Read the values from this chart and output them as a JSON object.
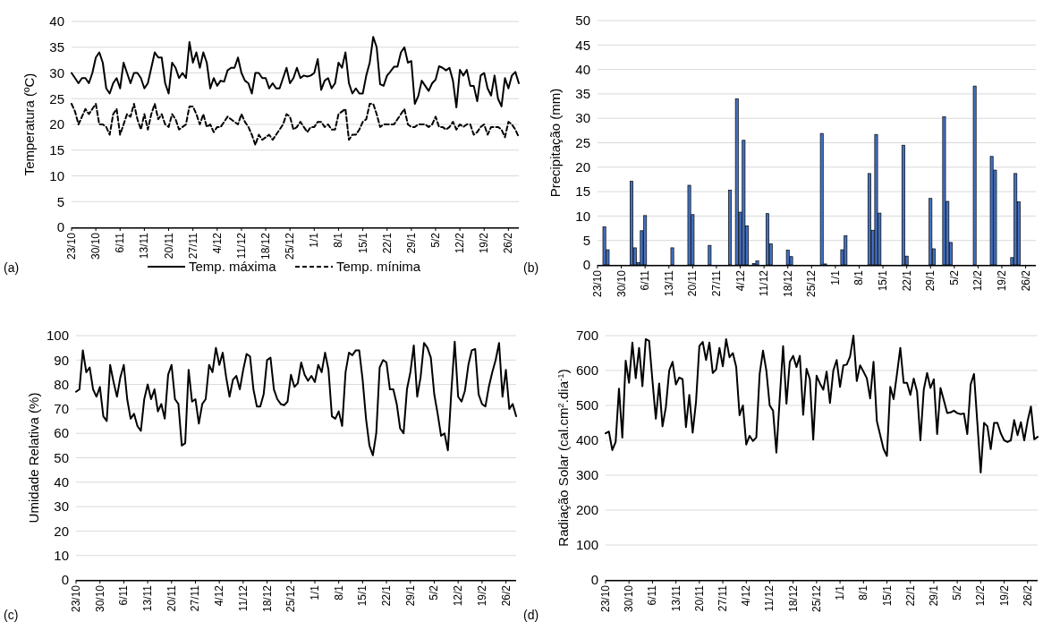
{
  "chart_data": [
    {
      "type": "line",
      "ylabel": "Temperatura (ºC)",
      "annotations": [
        "(a)"
      ],
      "grid": "y",
      "legend": "bottom",
      "ylim": [
        0,
        40
      ],
      "yticks": [
        0,
        5,
        10,
        15,
        20,
        25,
        30,
        35,
        40
      ],
      "categories": [
        "23/10",
        null,
        null,
        null,
        null,
        null,
        null,
        "30/10",
        null,
        null,
        null,
        null,
        null,
        null,
        "6/11",
        null,
        null,
        null,
        null,
        null,
        null,
        "13/11",
        null,
        null,
        null,
        null,
        null,
        null,
        "20/11",
        null,
        null,
        null,
        null,
        null,
        null,
        "27/11",
        null,
        null,
        null,
        null,
        null,
        null,
        "4/12",
        null,
        null,
        null,
        null,
        null,
        null,
        "11/12",
        null,
        null,
        null,
        null,
        null,
        null,
        "18/12",
        null,
        null,
        null,
        null,
        null,
        null,
        "25/12",
        null,
        null,
        null,
        null,
        null,
        null,
        "1/1",
        null,
        null,
        null,
        null,
        null,
        null,
        "8/1",
        null,
        null,
        null,
        null,
        null,
        null,
        "15/1",
        null,
        null,
        null,
        null,
        null,
        null,
        "22/1",
        null,
        null,
        null,
        null,
        null,
        null,
        "29/1",
        null,
        null,
        null,
        null,
        null,
        null,
        "5/2",
        null,
        null,
        null,
        null,
        null,
        null,
        "12/2",
        null,
        null,
        null,
        null,
        null,
        null,
        "19/2",
        null,
        null,
        null,
        null,
        null,
        null,
        "26/2",
        null,
        null,
        null
      ],
      "series": [
        {
          "name": "Temp. máxima",
          "color": "#000000",
          "line_style": "solid",
          "values": [
            30,
            29,
            28,
            29,
            29,
            28,
            30,
            33,
            34,
            32,
            27,
            26,
            28,
            29,
            27,
            32,
            30,
            28,
            30,
            30,
            29,
            27,
            28,
            31,
            34,
            33,
            33,
            28,
            26,
            32,
            31,
            29,
            30,
            29,
            36,
            32,
            34,
            31,
            34,
            32,
            27,
            29,
            27.5,
            28.5,
            28.3,
            30.5,
            31,
            31,
            33,
            30,
            28.5,
            28,
            26,
            30,
            30,
            29,
            29,
            27,
            28,
            27,
            27,
            29,
            31,
            28,
            29,
            31,
            29,
            29.5,
            29.3,
            29.5,
            30,
            32.7,
            26.7,
            28.5,
            29,
            27,
            28,
            32,
            31,
            34,
            28,
            26,
            27,
            26,
            26,
            29.5,
            32,
            37,
            35,
            27.8,
            27.5,
            29.5,
            30.3,
            31.2,
            31.2,
            34,
            35,
            32,
            32.3,
            24,
            25.5,
            28.5,
            27.5,
            26.5,
            28,
            28.7,
            31.3,
            31,
            30.5,
            31,
            28.5,
            23.3,
            30.6,
            29.5,
            30.6,
            27.5,
            27.5,
            24.5,
            29.5,
            30,
            27,
            25.6,
            29.5,
            25,
            23.5,
            29,
            27,
            29.5,
            30.2,
            28
          ]
        },
        {
          "name": "Temp. mínima",
          "color": "#000000",
          "line_style": "dashed",
          "values": [
            24,
            22.5,
            20,
            21.5,
            23,
            22,
            23,
            24,
            20,
            20,
            19.5,
            18,
            22,
            23,
            18,
            20,
            22,
            21.5,
            24,
            21,
            19,
            22,
            19,
            22,
            24,
            21,
            22,
            20,
            19.5,
            22,
            21,
            19,
            19.5,
            20,
            23.5,
            23.5,
            22,
            20,
            22,
            19.5,
            20,
            18.5,
            19.5,
            19.5,
            20.5,
            21.5,
            21,
            20.5,
            20,
            22,
            20.5,
            19.5,
            18,
            16,
            18,
            17,
            17.5,
            18,
            17,
            18,
            19,
            20,
            22,
            21.5,
            19,
            19.5,
            20.5,
            19.5,
            18.5,
            19.5,
            19.5,
            20.5,
            20.5,
            19.5,
            20,
            19,
            19,
            22,
            22.5,
            23,
            17,
            18,
            18,
            19,
            20.5,
            21,
            24,
            24,
            22,
            19.5,
            20,
            20,
            20,
            20,
            21,
            22,
            23,
            20,
            19.5,
            19.5,
            20,
            20,
            20,
            19.5,
            20,
            21.5,
            19.5,
            19.5,
            19,
            19.5,
            20.5,
            19,
            20,
            19.5,
            20,
            20,
            18,
            18.5,
            19.5,
            20,
            18,
            19.5,
            19.5,
            19.5,
            19,
            17.5,
            20.5,
            20,
            19,
            17.5
          ]
        }
      ]
    },
    {
      "type": "bar",
      "ylabel": "Precipitação (mm)",
      "annotations": [
        "(b)"
      ],
      "grid": "y",
      "ylim": [
        0,
        50
      ],
      "yticks": [
        0,
        5,
        10,
        15,
        20,
        25,
        30,
        35,
        40,
        45,
        50
      ],
      "categories": [
        "23/10",
        null,
        null,
        null,
        null,
        null,
        null,
        "30/10",
        null,
        null,
        null,
        null,
        null,
        null,
        "6/11",
        null,
        null,
        null,
        null,
        null,
        null,
        "13/11",
        null,
        null,
        null,
        null,
        null,
        null,
        "20/11",
        null,
        null,
        null,
        null,
        null,
        null,
        "27/11",
        null,
        null,
        null,
        null,
        null,
        null,
        "4/12",
        null,
        null,
        null,
        null,
        null,
        null,
        "11/12",
        null,
        null,
        null,
        null,
        null,
        null,
        "18/12",
        null,
        null,
        null,
        null,
        null,
        null,
        "25/12",
        null,
        null,
        null,
        null,
        null,
        null,
        "1/1",
        null,
        null,
        null,
        null,
        null,
        null,
        "8/1",
        null,
        null,
        null,
        null,
        null,
        null,
        "15/1",
        null,
        null,
        null,
        null,
        null,
        null,
        "22/1",
        null,
        null,
        null,
        null,
        null,
        null,
        "29/1",
        null,
        null,
        null,
        null,
        null,
        null,
        "5/2",
        null,
        null,
        null,
        null,
        null,
        null,
        "12/2",
        null,
        null,
        null,
        null,
        null,
        null,
        "19/2",
        null,
        null,
        null,
        null,
        null,
        null,
        "26/2",
        null,
        null,
        null
      ],
      "series": [
        {
          "color": "#4472c4",
          "values": [
            0,
            0,
            7.8,
            3.1,
            0,
            0,
            0,
            0,
            0,
            0,
            17.1,
            3.5,
            0.5,
            7,
            10.1,
            0,
            0,
            0,
            0,
            0,
            0,
            0,
            3.5,
            0,
            0,
            0,
            0,
            16.3,
            10.3,
            0,
            0,
            0,
            0,
            4,
            0,
            0,
            0,
            0,
            0,
            15.3,
            0,
            34,
            10.8,
            25.5,
            8,
            0,
            0.3,
            0.8,
            0,
            0,
            10.5,
            4.3,
            0,
            0,
            0,
            0,
            3,
            1.7,
            0,
            0,
            0,
            0,
            0,
            0,
            0,
            0,
            26.9,
            0.2,
            0,
            0,
            0,
            0,
            3.1,
            6,
            0,
            0,
            0,
            0,
            0,
            0,
            18.7,
            7.1,
            26.7,
            10.6,
            0,
            0,
            0,
            0,
            0,
            0,
            24.5,
            1.8,
            0,
            0,
            0,
            0,
            0,
            0,
            13.6,
            3.3,
            0,
            0,
            30.3,
            13,
            4.6,
            0,
            0,
            0,
            0,
            0,
            0,
            36.6,
            0,
            0,
            0,
            0,
            22.2,
            19.4,
            0,
            0,
            0,
            0,
            1.5,
            18.7,
            12.9,
            0,
            0,
            0,
            0,
            0
          ]
        }
      ]
    },
    {
      "type": "line",
      "ylabel": "Umidade Relativa (%)",
      "annotations": [
        "(c)"
      ],
      "grid": "y",
      "ylim": [
        0,
        100
      ],
      "yticks": [
        0,
        10,
        20,
        30,
        40,
        50,
        60,
        70,
        80,
        90,
        100
      ],
      "categories": [
        "23/10",
        null,
        null,
        null,
        null,
        null,
        null,
        "30/10",
        null,
        null,
        null,
        null,
        null,
        null,
        "6/11",
        null,
        null,
        null,
        null,
        null,
        null,
        "13/11",
        null,
        null,
        null,
        null,
        null,
        null,
        "20/11",
        null,
        null,
        null,
        null,
        null,
        null,
        "27/11",
        null,
        null,
        null,
        null,
        null,
        null,
        "4/12",
        null,
        null,
        null,
        null,
        null,
        null,
        "11/12",
        null,
        null,
        null,
        null,
        null,
        null,
        "18/12",
        null,
        null,
        null,
        null,
        null,
        null,
        "25/12",
        null,
        null,
        null,
        null,
        null,
        null,
        "1/1",
        null,
        null,
        null,
        null,
        null,
        null,
        "8/1",
        null,
        null,
        null,
        null,
        null,
        null,
        "15/1",
        null,
        null,
        null,
        null,
        null,
        null,
        "22/1",
        null,
        null,
        null,
        null,
        null,
        null,
        "29/1",
        null,
        null,
        null,
        null,
        null,
        null,
        "5/2",
        null,
        null,
        null,
        null,
        null,
        null,
        "12/2",
        null,
        null,
        null,
        null,
        null,
        null,
        "19/2",
        null,
        null,
        null,
        null,
        null,
        null,
        "26/2",
        null,
        null,
        null
      ],
      "series": [
        {
          "color": "#000000",
          "values": [
            77,
            78,
            94,
            85,
            87,
            78,
            75,
            79,
            67,
            65,
            88,
            81,
            75,
            83,
            88,
            74,
            66,
            68,
            63,
            61,
            74,
            80,
            74,
            78,
            69,
            72,
            66,
            84,
            88,
            74,
            72,
            55,
            56,
            86,
            73,
            74,
            64,
            72,
            74,
            88,
            85,
            95,
            88,
            93,
            83,
            75,
            82,
            83.5,
            78,
            86,
            92.5,
            91.5,
            78,
            71,
            71,
            76,
            90,
            91,
            78,
            74,
            72,
            71.5,
            73,
            84,
            79,
            80.5,
            89,
            84,
            81.5,
            83.5,
            81,
            88,
            85,
            93,
            86,
            67,
            66,
            69,
            63,
            85,
            93,
            92,
            94,
            94,
            82,
            66,
            55,
            51,
            60,
            87,
            90,
            89,
            78,
            78,
            72,
            62,
            60,
            78,
            85,
            96,
            75,
            83,
            97,
            95,
            91,
            76,
            68,
            59,
            60,
            53,
            77,
            97.5,
            75,
            73,
            77.5,
            88,
            94,
            94.5,
            76,
            72,
            71,
            79,
            85,
            90,
            97,
            75,
            86,
            70,
            72,
            67
          ]
        }
      ]
    },
    {
      "type": "line",
      "ylabel": "Radiação Solar (cal.cm$^{2}$.dia$^{-1}$)",
      "annotations": [
        "(d)"
      ],
      "grid": "y",
      "ylim": [
        0,
        700
      ],
      "yticks": [
        0,
        100,
        200,
        300,
        400,
        500,
        600,
        700
      ],
      "categories": [
        "23/10",
        null,
        null,
        null,
        null,
        null,
        null,
        "30/10",
        null,
        null,
        null,
        null,
        null,
        null,
        "6/11",
        null,
        null,
        null,
        null,
        null,
        null,
        "13/11",
        null,
        null,
        null,
        null,
        null,
        null,
        "20/11",
        null,
        null,
        null,
        null,
        null,
        null,
        "27/11",
        null,
        null,
        null,
        null,
        null,
        null,
        "4/12",
        null,
        null,
        null,
        null,
        null,
        null,
        "11/12",
        null,
        null,
        null,
        null,
        null,
        null,
        "18/12",
        null,
        null,
        null,
        null,
        null,
        null,
        "25/12",
        null,
        null,
        null,
        null,
        null,
        null,
        "1/1",
        null,
        null,
        null,
        null,
        null,
        null,
        "8/1",
        null,
        null,
        null,
        null,
        null,
        null,
        "15/1",
        null,
        null,
        null,
        null,
        null,
        null,
        "22/1",
        null,
        null,
        null,
        null,
        null,
        null,
        "29/1",
        null,
        null,
        null,
        null,
        null,
        null,
        "5/2",
        null,
        null,
        null,
        null,
        null,
        null,
        "12/2",
        null,
        null,
        null,
        null,
        null,
        null,
        "19/2",
        null,
        null,
        null,
        null,
        null,
        null,
        "26/2",
        null,
        null,
        null
      ],
      "series": [
        {
          "color": "#000000",
          "values": [
            420,
            425,
            372,
            395,
            548,
            408,
            628,
            565,
            680,
            578,
            665,
            555,
            690,
            685,
            570,
            462,
            563,
            440,
            495,
            600,
            625,
            560,
            580,
            575,
            438,
            530,
            422,
            510,
            670,
            682,
            630,
            680,
            593,
            603,
            665,
            612,
            690,
            638,
            650,
            610,
            472,
            500,
            388,
            413,
            398,
            408,
            590,
            657,
            600,
            500,
            485,
            365,
            520,
            670,
            505,
            625,
            642,
            610,
            642,
            473,
            605,
            575,
            402,
            585,
            563,
            545,
            597,
            507,
            600,
            630,
            553,
            615,
            617,
            640,
            700,
            570,
            615,
            597,
            578,
            520,
            625,
            455,
            415,
            375,
            355,
            553,
            518,
            590,
            665,
            565,
            565,
            530,
            577,
            540,
            400,
            545,
            593,
            550,
            575,
            418,
            550,
            515,
            478,
            480,
            485,
            478,
            475,
            477,
            418,
            560,
            590,
            450,
            308,
            450,
            440,
            375,
            450,
            450,
            420,
            400,
            395,
            400,
            458,
            415,
            452,
            400,
            455,
            497,
            403,
            410
          ]
        }
      ]
    }
  ]
}
